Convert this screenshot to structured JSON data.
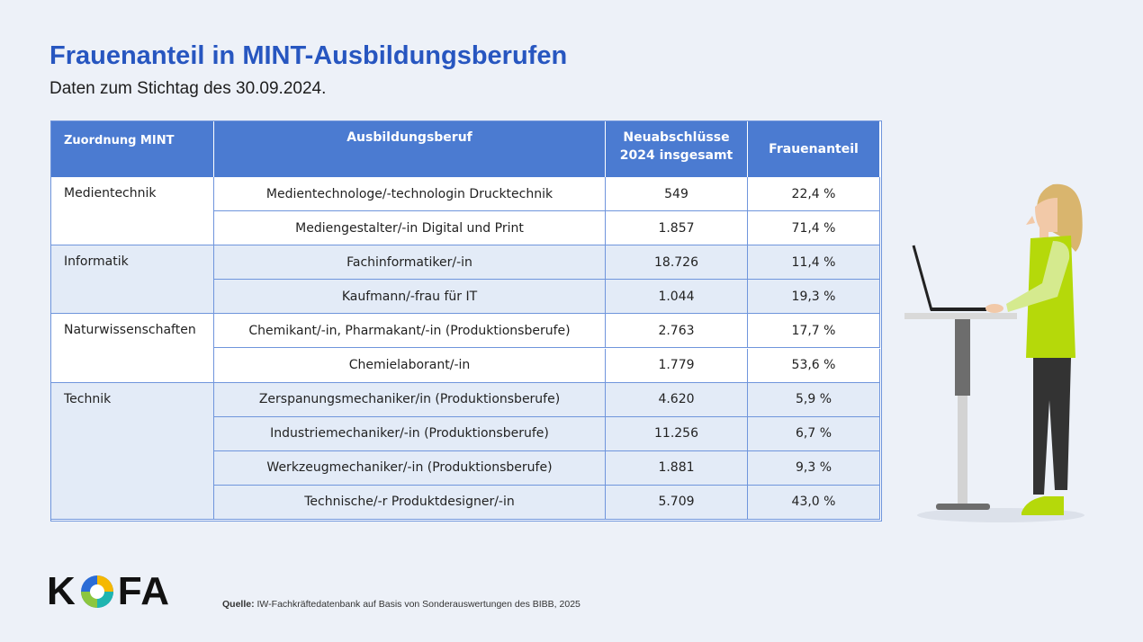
{
  "header": {
    "title": "Frauenanteil in MINT-Ausbildungsberufen",
    "subtitle": "Daten zum Stichtag des 30.09.2024."
  },
  "table": {
    "columns": [
      "Zuordnung MINT",
      "Ausbildungsberuf",
      "Neuabschlüsse 2024 insgesamt",
      "Frauenanteil"
    ],
    "groups": [
      {
        "name": "Medientechnik",
        "rows": [
          [
            "Medientechnologe/-technologin Drucktechnik",
            "549",
            "22,4 %"
          ],
          [
            "Mediengestalter/-in Digital und Print",
            "1.857",
            "71,4 %"
          ]
        ]
      },
      {
        "name": "Informatik",
        "rows": [
          [
            "Fachinformatiker/-in",
            "18.726",
            "11,4 %"
          ],
          [
            "Kaufmann/-frau für IT",
            "1.044",
            "19,3 %"
          ]
        ]
      },
      {
        "name": "Naturwissenschaften",
        "rows": [
          [
            "Chemikant/-in, Pharmakant/-in (Produktionsberufe)",
            "2.763",
            "17,7 %"
          ],
          [
            "Chemielaborant/-in",
            "1.779",
            "53,6 %"
          ]
        ]
      },
      {
        "name": "Technik",
        "rows": [
          [
            "Zerspanungsmechaniker/in (Produktionsberufe)",
            "4.620",
            "5,9 %"
          ],
          [
            "Industriemechaniker/-in (Produktionsberufe)",
            "11.256",
            "6,7 %"
          ],
          [
            "Werkzeugmechaniker/-in (Produktionsberufe)",
            "1.881",
            "9,3 %"
          ],
          [
            "Technische/-r Produktdesigner/-in",
            "5.709",
            "43,0 %"
          ]
        ]
      }
    ]
  },
  "logo": {
    "left": "K",
    "right": "FA"
  },
  "source": {
    "label": "Quelle:",
    "text": "IW-Fachkräftedatenbank auf Basis von Sonderauswertungen des BIBB, 2025"
  }
}
